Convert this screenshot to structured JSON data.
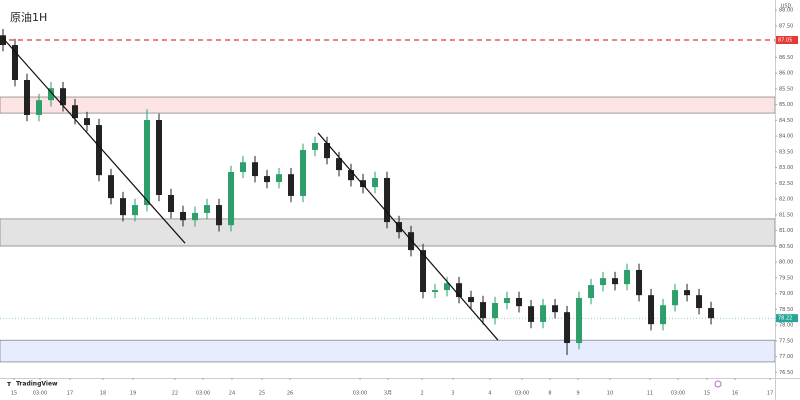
{
  "chart_data": {
    "type": "candlestick",
    "title": "原油1H",
    "currency": "USD",
    "watermark": "TradingView",
    "up_color": "#2e9e6b",
    "down_color": "#222222",
    "open": [
      87.2,
      86.89,
      85.78,
      84.67,
      85.14,
      85.52,
      84.98,
      84.57,
      84.35,
      82.76,
      82.03,
      81.49,
      81.81,
      84.51,
      82.13,
      81.59,
      81.33,
      81.56,
      81.81,
      81.17,
      82.86,
      83.17,
      82.73,
      82.54,
      82.79,
      82.1,
      83.56,
      83.78,
      83.3,
      82.92,
      82.6,
      82.38,
      82.67,
      81.27,
      80.95,
      80.38,
      79.05,
      79.11,
      79.33,
      78.89,
      78.73,
      78.22,
      78.7,
      78.86,
      78.6,
      78.1,
      78.63,
      78.41,
      77.43,
      78.86,
      79.27,
      79.49,
      79.3,
      79.75,
      78.95,
      78.03,
      78.63,
      79.11,
      78.95,
      78.54
    ],
    "high": [
      87.4,
      87.09,
      85.98,
      85.34,
      85.72,
      85.72,
      85.18,
      84.77,
      84.55,
      82.96,
      82.23,
      82.01,
      84.85,
      84.71,
      82.33,
      81.79,
      81.76,
      82.01,
      82.01,
      83.06,
      83.37,
      83.37,
      82.93,
      82.99,
      82.99,
      83.76,
      83.98,
      83.98,
      83.5,
      83.12,
      82.8,
      82.87,
      82.87,
      81.47,
      81.15,
      80.58,
      79.31,
      79.53,
      79.53,
      79.09,
      78.93,
      78.9,
      79.06,
      79.06,
      78.8,
      78.83,
      78.83,
      78.61,
      79.06,
      79.47,
      79.69,
      79.69,
      79.95,
      79.95,
      79.15,
      78.83,
      79.31,
      79.31,
      79.15,
      78.74
    ],
    "low": [
      86.69,
      85.58,
      84.47,
      84.47,
      84.94,
      84.78,
      84.37,
      84.15,
      82.56,
      81.83,
      81.29,
      81.29,
      81.61,
      81.93,
      81.39,
      81.13,
      81.13,
      81.36,
      80.97,
      80.97,
      82.66,
      82.53,
      82.34,
      82.34,
      81.9,
      81.9,
      83.36,
      83.1,
      82.72,
      82.4,
      82.18,
      82.18,
      81.07,
      80.75,
      80.18,
      78.85,
      78.85,
      78.91,
      78.69,
      78.53,
      78.02,
      78.02,
      78.5,
      78.4,
      77.9,
      77.9,
      78.21,
      77.05,
      77.23,
      78.66,
      79.07,
      79.1,
      79.1,
      78.75,
      77.83,
      77.83,
      78.43,
      78.75,
      78.34,
      78.02
    ],
    "close": [
      86.89,
      85.78,
      84.67,
      85.14,
      85.52,
      84.98,
      84.57,
      84.35,
      82.76,
      82.03,
      81.49,
      81.81,
      84.51,
      82.13,
      81.59,
      81.33,
      81.56,
      81.81,
      81.17,
      82.86,
      83.17,
      82.73,
      82.54,
      82.79,
      82.1,
      83.56,
      83.78,
      83.3,
      82.92,
      82.6,
      82.38,
      82.67,
      81.27,
      80.95,
      80.38,
      79.05,
      79.11,
      79.33,
      78.89,
      78.73,
      78.22,
      78.7,
      78.86,
      78.6,
      78.1,
      78.63,
      78.41,
      77.43,
      78.86,
      79.27,
      79.49,
      79.3,
      79.75,
      78.95,
      78.03,
      78.63,
      79.11,
      78.95,
      78.54,
      78.22
    ],
    "xlim": [
      -0.25,
      64.33
    ],
    "ylim": [
      76.32,
      88.32
    ],
    "yticks": [
      {
        "value": 88,
        "label": "88.00"
      },
      {
        "value": 87.5,
        "label": "87.50"
      },
      {
        "value": 87,
        "label": "87.00"
      },
      {
        "value": 86.5,
        "label": "86.50"
      },
      {
        "value": 86,
        "label": "86.00"
      },
      {
        "value": 85.5,
        "label": "85.50"
      },
      {
        "value": 85,
        "label": "85.00"
      },
      {
        "value": 84.5,
        "label": "84.50"
      },
      {
        "value": 84,
        "label": "84.00"
      },
      {
        "value": 83.5,
        "label": "83.50"
      },
      {
        "value": 83,
        "label": "83.00"
      },
      {
        "value": 82.5,
        "label": "82.50"
      },
      {
        "value": 82,
        "label": "82.00"
      },
      {
        "value": 81.5,
        "label": "81.50"
      },
      {
        "value": 81,
        "label": "81.00"
      },
      {
        "value": 80.5,
        "label": "80.50"
      },
      {
        "value": 80,
        "label": "80.00"
      },
      {
        "value": 79.5,
        "label": "79.50"
      },
      {
        "value": 79,
        "label": "79.00"
      },
      {
        "value": 78.5,
        "label": "78.50"
      },
      {
        "value": 78,
        "label": "78.00"
      },
      {
        "value": 77.5,
        "label": "77.50"
      },
      {
        "value": 77,
        "label": "77.00"
      },
      {
        "value": 76.5,
        "label": "76.50"
      }
    ],
    "xticks": [
      {
        "value": 0.92,
        "label": "15"
      },
      {
        "value": 3.08,
        "label": "03:00"
      },
      {
        "value": 5.58,
        "label": "17"
      },
      {
        "value": 8.33,
        "label": "18"
      },
      {
        "value": 10.83,
        "label": "19"
      },
      {
        "value": 14.33,
        "label": "22"
      },
      {
        "value": 16.67,
        "label": "03:00"
      },
      {
        "value": 19.08,
        "label": "24"
      },
      {
        "value": 21.58,
        "label": "25"
      },
      {
        "value": 23.92,
        "label": "26"
      },
      {
        "value": 29.75,
        "label": "03:00"
      },
      {
        "value": 32.08,
        "label": "3月"
      },
      {
        "value": 34.92,
        "label": "2"
      },
      {
        "value": 37.5,
        "label": "3"
      },
      {
        "value": 40.58,
        "label": "4"
      },
      {
        "value": 43.25,
        "label": "03:00"
      },
      {
        "value": 45.58,
        "label": "8"
      },
      {
        "value": 47.92,
        "label": "9"
      },
      {
        "value": 50.58,
        "label": "10"
      },
      {
        "value": 53.92,
        "label": "11"
      },
      {
        "value": 56.25,
        "label": "03:00"
      },
      {
        "value": 58.67,
        "label": "15"
      },
      {
        "value": 61,
        "label": "16"
      },
      {
        "value": 63.92,
        "label": "17"
      }
    ],
    "zones": [
      {
        "top": 85.24,
        "bottom": 84.73,
        "color": "#fde4e4"
      },
      {
        "top": 81.37,
        "bottom": 80.51,
        "color": "#e3e3e3"
      },
      {
        "top": 77.52,
        "bottom": 76.83,
        "color": "#e8ecff"
      }
    ],
    "level": {
      "price": 87.05,
      "color": "#e53935"
    },
    "last_price": {
      "price": 78.22,
      "color": "#26a69a"
    },
    "trendlines": [
      {
        "x": [
          0,
          15.17
        ],
        "y": [
          87.11,
          80.6
        ]
      },
      {
        "x": [
          26.25,
          41.25
        ],
        "y": [
          84.1,
          77.52
        ]
      }
    ]
  }
}
